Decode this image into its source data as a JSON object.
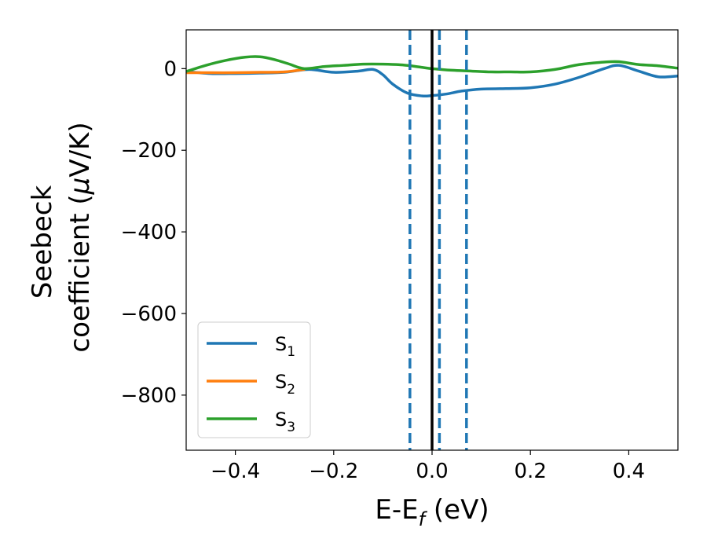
{
  "chart_data": {
    "type": "line",
    "xlabel_main": "E-E",
    "xlabel_sub": "f",
    "xlabel_unit": " (eV)",
    "ylabel_line1": "Seebeck",
    "ylabel_line2_a": "coefficient  (",
    "ylabel_line2_mu": "μ",
    "ylabel_line2_b": "V/K)",
    "xlim": [
      -0.5,
      0.5
    ],
    "ylim": [
      -935,
      95
    ],
    "xticks": [
      -0.4,
      -0.2,
      0.0,
      0.2,
      0.4
    ],
    "xtick_labels": [
      "−0.4",
      "−0.2",
      "0.0",
      "0.2",
      "0.4"
    ],
    "yticks": [
      0,
      -200,
      -400,
      -600,
      -800
    ],
    "ytick_labels": [
      "0",
      "−200",
      "−400",
      "−600",
      "−800"
    ],
    "grid": false,
    "legend_position": "lower-left",
    "series": [
      {
        "name": "S",
        "sub": "1",
        "color": "#1f77b4",
        "x": [
          -0.5,
          -0.45,
          -0.4,
          -0.35,
          -0.3,
          -0.25,
          -0.2,
          -0.15,
          -0.12,
          -0.1,
          -0.08,
          -0.05,
          -0.02,
          0.0,
          0.03,
          0.06,
          0.1,
          0.15,
          0.2,
          0.25,
          0.3,
          0.35,
          0.38,
          0.42,
          0.46,
          0.5
        ],
        "values": [
          -7,
          -12,
          -12,
          -11,
          -9,
          -2,
          -9,
          -6,
          -2,
          -15,
          -38,
          -60,
          -67,
          -66,
          -62,
          -55,
          -50,
          -49,
          -47,
          -38,
          -21,
          0,
          8,
          -6,
          -20,
          -18
        ]
      },
      {
        "name": "S",
        "sub": "2",
        "color": "#ff7f0e",
        "x": [
          -0.5,
          -0.45,
          -0.4,
          -0.35,
          -0.3,
          -0.26
        ],
        "values": [
          -10,
          -10,
          -10,
          -9,
          -8,
          -2
        ]
      },
      {
        "name": "S",
        "sub": "3",
        "color": "#2ca02c",
        "x": [
          -0.5,
          -0.46,
          -0.42,
          -0.38,
          -0.35,
          -0.32,
          -0.29,
          -0.26,
          -0.22,
          -0.18,
          -0.14,
          -0.1,
          -0.06,
          -0.02,
          0.0,
          0.04,
          0.08,
          0.12,
          0.16,
          0.2,
          0.25,
          0.3,
          0.35,
          0.38,
          0.42,
          0.46,
          0.5
        ],
        "values": [
          -7,
          8,
          20,
          28,
          29,
          22,
          11,
          0,
          5,
          8,
          11,
          11,
          9,
          3,
          0,
          -4,
          -6,
          -8,
          -8,
          -8,
          -2,
          10,
          16,
          17,
          10,
          7,
          1
        ]
      }
    ],
    "vlines": [
      {
        "x": -0.045,
        "color": "#1f77b4",
        "style": "dashed"
      },
      {
        "x": 0.015,
        "color": "#1f77b4",
        "style": "dashed"
      },
      {
        "x": 0.07,
        "color": "#1f77b4",
        "style": "dashed"
      },
      {
        "x": 0.0,
        "color": "#000000",
        "style": "solid"
      }
    ]
  }
}
